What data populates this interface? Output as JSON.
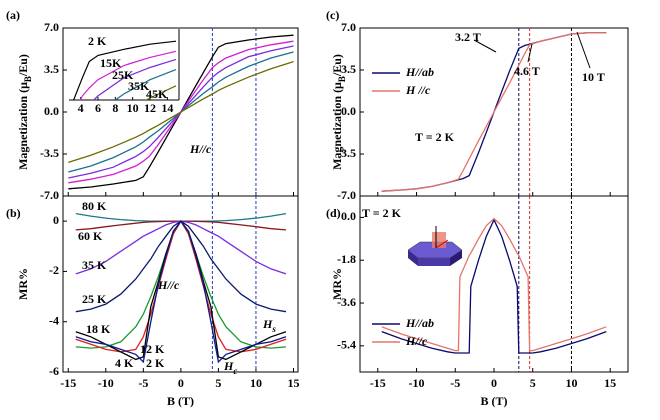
{
  "chart_data": [
    {
      "type": "line",
      "panel_label": "(a)",
      "ylabel": [
        "Magnetization (μ",
        "B",
        "/Eu)"
      ],
      "xlim": [
        -15.7,
        15.6
      ],
      "ylim": [
        -7,
        7
      ],
      "xticks": [
        -15,
        -10,
        -5,
        0,
        5,
        10,
        15
      ],
      "xtick_labels": false,
      "yticks": [
        {
          "value": -7,
          "label": "-7.0"
        },
        -3.5,
        {
          "value": 0,
          "label": "0.0"
        },
        3.5,
        {
          "value": 7,
          "label": "7.0"
        }
      ],
      "x": [
        -15,
        -12,
        -9,
        -6,
        -5,
        -4.2,
        -3,
        -1.5,
        0,
        1.5,
        3,
        4.2,
        5,
        6,
        9,
        12,
        15
      ],
      "series": [
        {
          "name": "2 K",
          "color": "#000000",
          "values": [
            -6.4,
            -6.25,
            -6.0,
            -5.7,
            -5.4,
            -4.6,
            -3.3,
            -1.65,
            0,
            1.65,
            3.3,
            4.6,
            5.4,
            5.7,
            6.0,
            6.25,
            6.4
          ]
        },
        {
          "name": "15K",
          "color": "#d21ed2",
          "values": [
            -5.9,
            -5.6,
            -5.2,
            -4.5,
            -4.1,
            -3.7,
            -2.7,
            -1.35,
            0,
            1.35,
            2.7,
            3.7,
            4.1,
            4.5,
            5.2,
            5.6,
            5.9
          ]
        },
        {
          "name": "25K",
          "color": "#7a2be0",
          "values": [
            -5.5,
            -5.1,
            -4.6,
            -3.7,
            -3.3,
            -2.9,
            -2.1,
            -1.05,
            0,
            1.05,
            2.1,
            2.9,
            3.3,
            3.7,
            4.6,
            5.1,
            5.5
          ]
        },
        {
          "name": "35K",
          "color": "#1a6f8f",
          "values": [
            -5.0,
            -4.5,
            -3.8,
            -2.9,
            -2.5,
            -2.1,
            -1.55,
            -0.78,
            0,
            0.78,
            1.55,
            2.1,
            2.5,
            2.9,
            3.8,
            4.5,
            5.0
          ]
        },
        {
          "name": "45K",
          "color": "#6b6b00",
          "values": [
            -4.2,
            -3.6,
            -2.9,
            -2.1,
            -1.8,
            -1.5,
            -1.1,
            -0.55,
            0,
            0.55,
            1.1,
            1.5,
            1.8,
            2.1,
            2.9,
            3.6,
            4.2
          ]
        }
      ],
      "vlines": [
        {
          "x": 4.2,
          "color": "#1f3fbf"
        },
        {
          "x": 10,
          "color": "#1f3fbf"
        }
      ],
      "annotations": [
        "H//c"
      ],
      "inset": {
        "xlim": [
          3,
          15
        ],
        "ylim": [
          3.5,
          7
        ],
        "xticks": [
          4,
          6,
          8,
          10,
          12,
          14
        ]
      }
    },
    {
      "type": "line",
      "panel_label": "(b)",
      "ylabel": "MR%",
      "xlabel": "B (T)",
      "xlim": [
        -15.7,
        15.6
      ],
      "ylim": [
        -6,
        1
      ],
      "xticks": [
        -15,
        -10,
        -5,
        0,
        5,
        10,
        15
      ],
      "xtick_labels": true,
      "yticks": [
        -6,
        -4,
        -2,
        0
      ],
      "x": [
        -14,
        -12,
        -10,
        -8,
        -6,
        -5,
        -4,
        -3,
        -2,
        -1,
        0,
        1,
        2,
        3,
        4,
        5,
        6,
        8,
        10,
        12,
        14
      ],
      "series": [
        {
          "name": "80 K",
          "color": "#1a7a8a",
          "values": [
            0.3,
            0.2,
            0.12,
            0.06,
            0.02,
            0.01,
            0,
            0,
            0,
            0,
            0,
            0,
            0,
            0,
            0,
            0.01,
            0.02,
            0.06,
            0.12,
            0.2,
            0.3
          ]
        },
        {
          "name": "60 K",
          "color": "#8b1a1a",
          "values": [
            -0.35,
            -0.3,
            -0.22,
            -0.15,
            -0.08,
            -0.05,
            -0.03,
            -0.02,
            -0.01,
            0,
            0,
            0,
            -0.01,
            -0.02,
            -0.03,
            -0.05,
            -0.08,
            -0.15,
            -0.22,
            -0.3,
            -0.35
          ]
        },
        {
          "name": "35 K",
          "color": "#7a2be0",
          "values": [
            -2.1,
            -1.9,
            -1.6,
            -1.2,
            -0.8,
            -0.6,
            -0.45,
            -0.3,
            -0.15,
            -0.05,
            0,
            -0.05,
            -0.15,
            -0.3,
            -0.45,
            -0.6,
            -0.8,
            -1.2,
            -1.6,
            -1.9,
            -2.1
          ]
        },
        {
          "name": "25 K",
          "color": "#0a1a6e",
          "values": [
            -3.6,
            -3.5,
            -3.3,
            -2.9,
            -2.3,
            -1.9,
            -1.5,
            -1.0,
            -0.6,
            -0.2,
            0,
            -0.2,
            -0.6,
            -1.0,
            -1.5,
            -1.9,
            -2.3,
            -2.9,
            -3.3,
            -3.5,
            -3.6
          ]
        },
        {
          "name": "18 K",
          "color": "#1a9a2a",
          "values": [
            -5.0,
            -5.05,
            -5.0,
            -4.8,
            -4.2,
            -3.7,
            -3.0,
            -2.2,
            -1.3,
            -0.5,
            0,
            -0.5,
            -1.3,
            -2.2,
            -3.0,
            -3.7,
            -4.2,
            -4.8,
            -5.0,
            -5.05,
            -5.0
          ]
        },
        {
          "name": "12 K",
          "color": "#e0201a",
          "values": [
            -4.7,
            -4.9,
            -5.1,
            -5.2,
            -5.1,
            -4.6,
            -3.7,
            -2.6,
            -1.5,
            -0.5,
            0,
            -0.5,
            -1.5,
            -2.6,
            -3.7,
            -4.6,
            -5.1,
            -5.2,
            -5.1,
            -4.9,
            -4.7
          ]
        },
        {
          "name": "4 K",
          "color": "#000000",
          "values": [
            -4.4,
            -4.6,
            -4.9,
            -5.2,
            -5.5,
            -5.4,
            -3.4,
            -2.4,
            -1.3,
            -0.4,
            0,
            -0.4,
            -1.3,
            -2.4,
            -3.4,
            -5.4,
            -5.5,
            -5.2,
            -4.9,
            -4.6,
            -4.4
          ]
        },
        {
          "name": "2 K",
          "color": "#0a1a8e",
          "values": [
            -4.6,
            -4.8,
            -4.9,
            -5.1,
            -5.3,
            -5.6,
            -4.0,
            -2.5,
            -1.4,
            -0.4,
            0,
            -0.4,
            -1.4,
            -2.5,
            -4.0,
            -5.6,
            -5.3,
            -5.1,
            -4.9,
            -4.8,
            -4.6
          ]
        }
      ],
      "vlines": [
        {
          "x": 4.2,
          "color": "#1f3fbf"
        },
        {
          "x": 10,
          "color": "#1f3fbf"
        }
      ],
      "annotations": [
        "80 K",
        "60 K",
        "35 K",
        "25 K",
        "18 K",
        "12 K",
        "4 K",
        "2 K",
        "H//c",
        {
          "text": "H",
          "sub": "c"
        },
        {
          "text": "H",
          "sub": "s"
        }
      ]
    },
    {
      "type": "line",
      "panel_label": "(c)",
      "ylabel": [
        "Magnetization (μ",
        "B",
        "/Eu)"
      ],
      "xlim": [
        -17.3,
        17.3
      ],
      "ylim": [
        -7,
        7
      ],
      "xticks": [
        -15,
        -10,
        -5,
        0,
        5,
        10,
        15
      ],
      "xtick_labels": false,
      "yticks": [
        {
          "value": -7,
          "label": "-7.0"
        },
        -3.5,
        {
          "value": 0,
          "label": "0.0"
        },
        3.5,
        {
          "value": 7,
          "label": "7.0"
        }
      ],
      "x": [
        -14.5,
        -12,
        -10,
        -8,
        -6,
        -4.6,
        -4,
        -3.2,
        -2,
        -1,
        0,
        1,
        2,
        3.2,
        4,
        4.6,
        6,
        8,
        10,
        12,
        14.5
      ],
      "series": [
        {
          "name": "H//ab",
          "color": "#0a0a6e",
          "values": [
            -6.6,
            -6.5,
            -6.4,
            -6.2,
            -5.9,
            -5.65,
            -5.55,
            -5.3,
            -3.4,
            -1.7,
            0,
            1.7,
            3.4,
            5.3,
            5.55,
            5.65,
            5.9,
            6.2,
            6.5,
            6.6,
            6.6
          ]
        },
        {
          "name": "H //c",
          "color": "#e57368",
          "values": [
            -6.6,
            -6.5,
            -6.4,
            -6.2,
            -5.9,
            -5.6,
            -4.9,
            -3.9,
            -2.4,
            -1.2,
            0,
            1.2,
            2.4,
            3.9,
            4.9,
            5.6,
            5.9,
            6.2,
            6.5,
            6.6,
            6.6
          ]
        }
      ],
      "legend": "top-left",
      "vlines": [
        {
          "x": 3.2,
          "color": "#0a0a6e"
        },
        {
          "x": 4.6,
          "color": "#d03030"
        },
        {
          "x": 10,
          "color": "#000000"
        }
      ],
      "annotations": [
        "3.2 T",
        "4.6 T",
        "10 T",
        "T = 2 K"
      ]
    },
    {
      "type": "line",
      "panel_label": "(d)",
      "ylabel": "MR%",
      "xlabel": "B (T)",
      "xlim": [
        -17.3,
        17.3
      ],
      "ylim": [
        -6.5,
        0.9
      ],
      "xticks": [
        -15,
        -10,
        -5,
        0,
        5,
        10,
        15
      ],
      "xtick_labels": true,
      "yticks": [
        -5.4,
        -3.6,
        -1.8,
        {
          "value": 0,
          "label": "0.0"
        }
      ],
      "x": [
        -14.5,
        -12,
        -10,
        -8,
        -6,
        -5,
        -4.6,
        -4.4,
        -3.2,
        -3,
        -2,
        -1,
        0,
        1,
        2,
        3,
        3.2,
        4.4,
        4.6,
        5,
        6,
        8,
        10,
        12,
        14.5
      ],
      "series": [
        {
          "name": "H//ab",
          "color": "#0a0a6e",
          "values": [
            -4.8,
            -5.1,
            -5.3,
            -5.5,
            -5.65,
            -5.7,
            -5.7,
            -5.7,
            -5.7,
            -2.9,
            -1.8,
            -0.8,
            -0.1,
            -0.8,
            -1.8,
            -2.9,
            -5.7,
            -5.7,
            -5.7,
            -5.7,
            -5.65,
            -5.5,
            -5.3,
            -5.1,
            -4.8
          ]
        },
        {
          "name": "H//c",
          "color": "#e57368",
          "values": [
            -4.6,
            -4.9,
            -5.1,
            -5.3,
            -5.5,
            -5.6,
            -5.6,
            -2.5,
            -1.6,
            -1.5,
            -0.9,
            -0.35,
            -0.05,
            -0.35,
            -0.9,
            -1.5,
            -1.6,
            -2.5,
            -5.6,
            -5.6,
            -5.5,
            -5.3,
            -5.1,
            -4.9,
            -4.6
          ]
        }
      ],
      "legend": "bottom-left",
      "vlines": [
        {
          "x": 3.2,
          "color": "#0a0a6e"
        },
        {
          "x": 4.6,
          "color": "#d03030"
        },
        {
          "x": 10,
          "color": "#000000"
        }
      ],
      "annotations": [
        "T = 2 K"
      ]
    }
  ]
}
